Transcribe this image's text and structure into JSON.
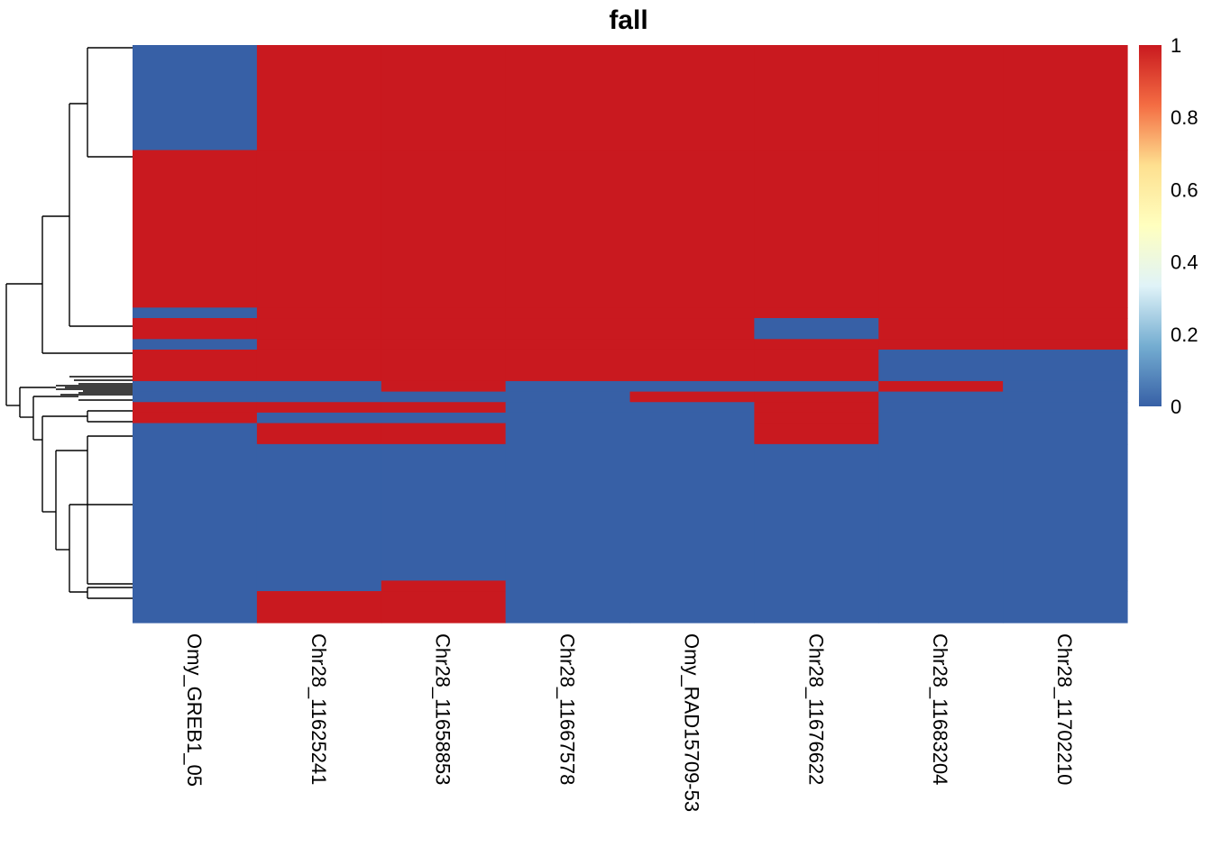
{
  "chart_data": {
    "type": "heatmap",
    "title": "fall",
    "columns": [
      "Omy_GREB1_05",
      "Chr28_11625241",
      "Chr28_11658853",
      "Chr28_11667578",
      "Omy_RAD15709-53",
      "Chr28_11676622",
      "Chr28_11683204",
      "Chr28_11702210"
    ],
    "row_blocks": [
      {
        "rows": 10,
        "values": [
          0,
          1,
          1,
          1,
          1,
          1,
          1,
          1
        ]
      },
      {
        "rows": 15,
        "values": [
          1,
          1,
          1,
          1,
          1,
          1,
          1,
          1
        ]
      },
      {
        "rows": 1,
        "values": [
          0,
          1,
          1,
          1,
          1,
          1,
          1,
          1
        ]
      },
      {
        "rows": 2,
        "values": [
          1,
          1,
          1,
          1,
          1,
          0,
          1,
          1
        ]
      },
      {
        "rows": 1,
        "values": [
          0,
          1,
          1,
          1,
          1,
          1,
          1,
          1
        ]
      },
      {
        "rows": 3,
        "values": [
          1,
          1,
          1,
          1,
          1,
          1,
          0,
          0
        ]
      },
      {
        "rows": 1,
        "values": [
          0,
          0,
          1,
          0,
          0,
          0,
          1,
          0
        ]
      },
      {
        "rows": 1,
        "values": [
          0,
          0,
          0,
          0,
          1,
          1,
          0,
          0
        ]
      },
      {
        "rows": 1,
        "values": [
          1,
          1,
          1,
          0,
          0,
          1,
          0,
          0
        ]
      },
      {
        "rows": 1,
        "values": [
          1,
          0,
          0,
          0,
          0,
          1,
          0,
          0
        ]
      },
      {
        "rows": 2,
        "values": [
          0,
          1,
          1,
          0,
          0,
          1,
          0,
          0
        ]
      },
      {
        "rows": 13,
        "values": [
          0,
          0,
          0,
          0,
          0,
          0,
          0,
          0
        ]
      },
      {
        "rows": 1,
        "values": [
          0,
          0,
          1,
          0,
          0,
          0,
          0,
          0
        ]
      },
      {
        "rows": 3,
        "values": [
          0,
          1,
          1,
          0,
          0,
          0,
          0,
          0
        ]
      }
    ],
    "legend": {
      "ticks": [
        "1",
        "0.8",
        "0.6",
        "0.4",
        "0.2",
        "0"
      ],
      "range": [
        0,
        1
      ],
      "placement": "right"
    },
    "colors": {
      "low": "#3760a6",
      "high": "#c9191f"
    },
    "colorbar_stops": [
      "#3760a6",
      "#74add1",
      "#e0f3f8",
      "#ffffbf",
      "#fee090",
      "#f46d43",
      "#c9191f"
    ]
  }
}
